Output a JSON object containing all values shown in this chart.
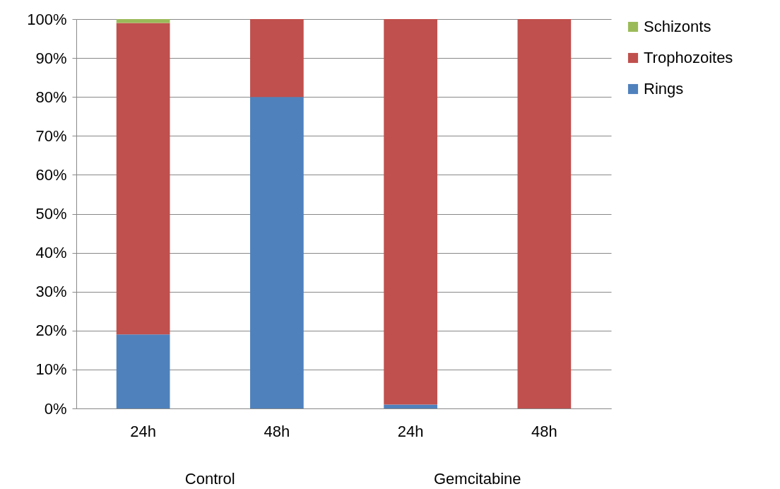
{
  "chart_data": {
    "type": "bar",
    "stacked": true,
    "categories": [
      "24h",
      "48h",
      "24h",
      "48h"
    ],
    "series": [
      {
        "name": "Rings",
        "color": "#4f81bd",
        "values": [
          19,
          80,
          1,
          0
        ]
      },
      {
        "name": "Trophozoites",
        "color": "#c0504d",
        "values": [
          80,
          20,
          99,
          100
        ]
      },
      {
        "name": "Schizonts",
        "color": "#9bbb59",
        "values": [
          1,
          0,
          0,
          0
        ]
      }
    ],
    "ylim": [
      0,
      100
    ],
    "yticks": [
      {
        "value": 0,
        "label": "0%"
      },
      {
        "value": 10,
        "label": "10%"
      },
      {
        "value": 20,
        "label": "20%"
      },
      {
        "value": 30,
        "label": "30%"
      },
      {
        "value": 40,
        "label": "40%"
      },
      {
        "value": 50,
        "label": "50%"
      },
      {
        "value": 60,
        "label": "60%"
      },
      {
        "value": 70,
        "label": "70%"
      },
      {
        "value": 80,
        "label": "80%"
      },
      {
        "value": 90,
        "label": "90%"
      },
      {
        "value": 100,
        "label": "100%"
      }
    ],
    "grid": "y",
    "legend": "right",
    "annotations": [
      "Control",
      "Gemcitabine"
    ]
  }
}
